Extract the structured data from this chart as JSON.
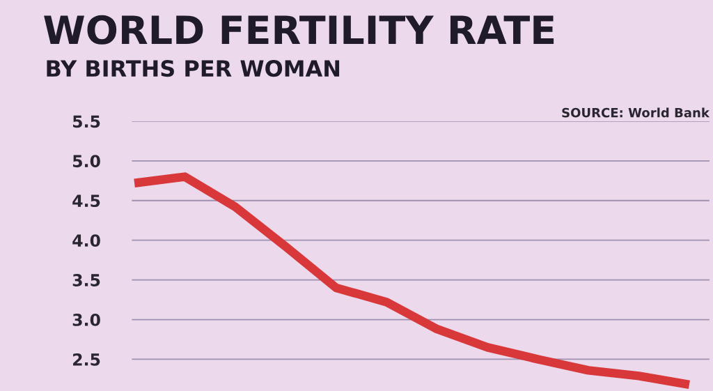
{
  "chart_data": {
    "type": "line",
    "title": "WORLD FERTILITY RATE",
    "subtitle": "BY BIRTHS PER WOMAN",
    "annotations": [
      "SOURCE: World Bank"
    ],
    "categories": [
      null,
      null,
      null,
      null,
      null,
      null,
      null,
      null,
      null,
      null,
      null,
      null
    ],
    "series": [
      {
        "color": "#d8383a",
        "values": [
          4.72,
          4.8,
          4.42,
          3.92,
          3.4,
          3.22,
          2.88,
          2.65,
          2.5,
          2.36,
          2.29,
          2.18
        ]
      }
    ],
    "ylim": [
      2.1,
      5.5
    ],
    "yticks": [
      {
        "value": 2.5,
        "label": "2.5"
      },
      {
        "value": 3.0,
        "label": "3.0"
      },
      {
        "value": 3.5,
        "label": "3.5"
      },
      {
        "value": 4.0,
        "label": "4.0"
      },
      {
        "value": 4.5,
        "label": "4.5"
      },
      {
        "value": 5.0,
        "label": "5.0"
      },
      {
        "value": 5.5,
        "label": "5.5"
      }
    ],
    "grid": "y",
    "tick_labels": "y",
    "marker": "none",
    "line_style": "solid"
  }
}
